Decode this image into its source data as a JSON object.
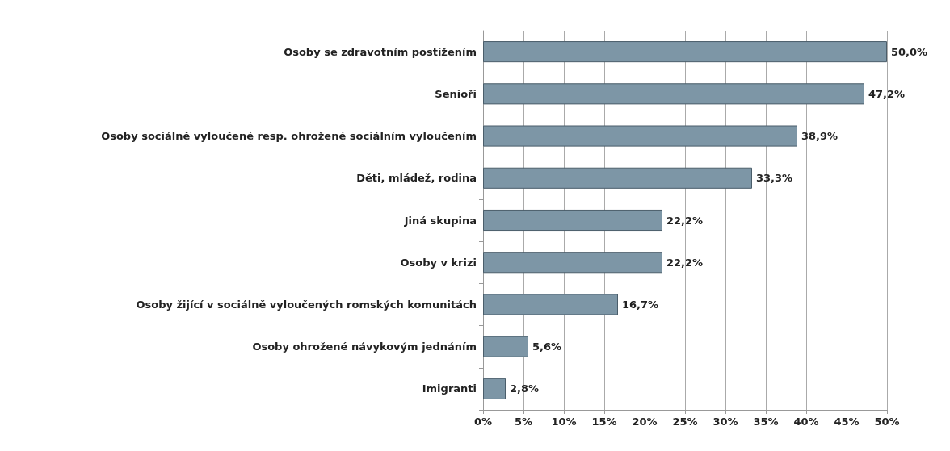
{
  "chart_data": {
    "type": "bar",
    "orientation": "horizontal",
    "categories": [
      "Osoby se zdravotním postižením",
      "Senioři",
      "Osoby sociálně vyloučené resp. ohrožené sociálním vyloučením",
      "Děti, mládež, rodina",
      "Jiná skupina",
      "Osoby v krizi",
      "Osoby žijící v sociálně vyloučených romských komunitách",
      "Osoby ohrožené návykovým jednáním",
      "Imigranti"
    ],
    "values": [
      50.0,
      47.2,
      38.9,
      33.3,
      22.2,
      22.2,
      16.7,
      5.6,
      2.8
    ],
    "value_labels": [
      "50,0%",
      "47,2%",
      "38,9%",
      "33,3%",
      "22,2%",
      "22,2%",
      "16,7%",
      "5,6%",
      "2,8%"
    ],
    "color": "#7d96a6",
    "xlim": [
      0,
      50
    ],
    "xticks": [
      {
        "value": 0,
        "label": "0%"
      },
      {
        "value": 5,
        "label": "5%"
      },
      {
        "value": 10,
        "label": "10%"
      },
      {
        "value": 15,
        "label": "15%"
      },
      {
        "value": 20,
        "label": "20%"
      },
      {
        "value": 25,
        "label": "25%"
      },
      {
        "value": 30,
        "label": "30%"
      },
      {
        "value": 35,
        "label": "35%"
      },
      {
        "value": 40,
        "label": "40%"
      },
      {
        "value": 45,
        "label": "45%"
      },
      {
        "value": 50,
        "label": "50%"
      }
    ],
    "grid": "x"
  }
}
